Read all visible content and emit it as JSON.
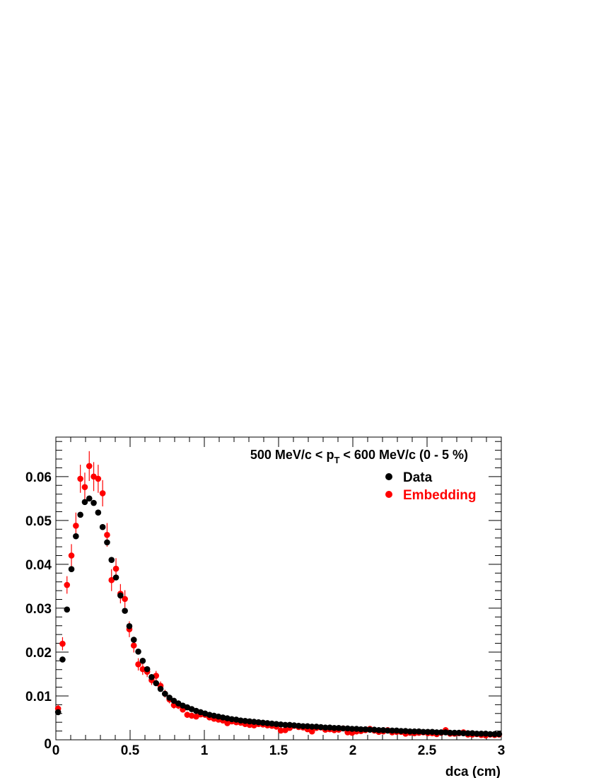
{
  "chart_data": {
    "type": "scatter",
    "title": "",
    "annotation": {
      "prefix": "500 MeV/c < p",
      "subscript": "T",
      "suffix": " < 600 MeV/c (0 - 5 %)"
    },
    "xlabel": "dca (cm)",
    "ylabel": "",
    "xlim": [
      0,
      3
    ],
    "ylim": [
      0,
      0.069
    ],
    "x_ticks": [
      "0",
      "0.5",
      "1",
      "1.5",
      "2",
      "2.5",
      "3"
    ],
    "y_ticks": [
      "0",
      "0.01",
      "0.02",
      "0.03",
      "0.04",
      "0.05",
      "0.06"
    ],
    "grid": false,
    "legend_position": "top-right",
    "series": [
      {
        "name": "Data",
        "color": "#000000",
        "x": [
          0.015,
          0.045,
          0.075,
          0.105,
          0.135,
          0.165,
          0.195,
          0.225,
          0.255,
          0.285,
          0.315,
          0.345,
          0.375,
          0.405,
          0.435,
          0.465,
          0.495,
          0.525,
          0.555,
          0.585,
          0.615,
          0.645,
          0.675,
          0.705,
          0.735,
          0.765,
          0.795,
          0.825,
          0.855,
          0.885,
          0.915,
          0.945,
          0.975,
          1.005,
          1.035,
          1.065,
          1.095,
          1.125,
          1.155,
          1.185,
          1.215,
          1.245,
          1.275,
          1.305,
          1.335,
          1.365,
          1.395,
          1.425,
          1.455,
          1.485,
          1.515,
          1.545,
          1.575,
          1.605,
          1.635,
          1.665,
          1.695,
          1.725,
          1.755,
          1.785,
          1.815,
          1.845,
          1.875,
          1.905,
          1.935,
          1.965,
          1.995,
          2.025,
          2.055,
          2.085,
          2.115,
          2.145,
          2.175,
          2.205,
          2.235,
          2.265,
          2.295,
          2.325,
          2.355,
          2.385,
          2.415,
          2.445,
          2.475,
          2.505,
          2.535,
          2.565,
          2.595,
          2.625,
          2.655,
          2.685,
          2.715,
          2.745,
          2.775,
          2.805,
          2.835,
          2.865,
          2.895,
          2.925,
          2.955,
          2.985
        ],
        "y": [
          0.0063,
          0.0183,
          0.0297,
          0.0389,
          0.0464,
          0.0513,
          0.0542,
          0.055,
          0.054,
          0.0518,
          0.0485,
          0.045,
          0.041,
          0.037,
          0.0329,
          0.0294,
          0.0259,
          0.0228,
          0.0201,
          0.018,
          0.0161,
          0.0143,
          0.0129,
          0.0116,
          0.0105,
          0.0096,
          0.0089,
          0.0083,
          0.0078,
          0.0074,
          0.007,
          0.0066,
          0.0063,
          0.006,
          0.0057,
          0.0055,
          0.0053,
          0.0051,
          0.0049,
          0.0047,
          0.0046,
          0.0044,
          0.0043,
          0.0042,
          0.0041,
          0.004,
          0.0039,
          0.0038,
          0.0037,
          0.0036,
          0.0035,
          0.0034,
          0.0034,
          0.0033,
          0.0032,
          0.0031,
          0.0031,
          0.003,
          0.003,
          0.0029,
          0.0028,
          0.0028,
          0.0027,
          0.0027,
          0.0026,
          0.0026,
          0.0025,
          0.0025,
          0.0024,
          0.0024,
          0.0023,
          0.0023,
          0.0022,
          0.0022,
          0.0021,
          0.0021,
          0.0021,
          0.002,
          0.002,
          0.0019,
          0.0019,
          0.0019,
          0.0018,
          0.0018,
          0.0018,
          0.0017,
          0.0017,
          0.0017,
          0.0016,
          0.0016,
          0.0016,
          0.0015,
          0.0015,
          0.0015,
          0.0014,
          0.0014,
          0.0014,
          0.0013,
          0.0013,
          0.0013
        ]
      },
      {
        "name": "Embedding",
        "color": "#ff0000",
        "x": [
          0.015,
          0.045,
          0.075,
          0.105,
          0.135,
          0.165,
          0.195,
          0.225,
          0.255,
          0.285,
          0.315,
          0.345,
          0.375,
          0.405,
          0.435,
          0.465,
          0.495,
          0.525,
          0.555,
          0.585,
          0.615,
          0.645,
          0.675,
          0.705,
          0.735,
          0.765,
          0.795,
          0.825,
          0.855,
          0.885,
          0.915,
          0.945,
          0.975,
          1.005,
          1.035,
          1.065,
          1.095,
          1.125,
          1.155,
          1.185,
          1.215,
          1.245,
          1.275,
          1.305,
          1.335,
          1.365,
          1.395,
          1.425,
          1.455,
          1.485,
          1.515,
          1.545,
          1.575,
          1.605,
          1.635,
          1.665,
          1.695,
          1.725,
          1.755,
          1.785,
          1.815,
          1.845,
          1.875,
          1.905,
          1.935,
          1.965,
          1.995,
          2.025,
          2.055,
          2.085,
          2.115,
          2.145,
          2.175,
          2.205,
          2.235,
          2.265,
          2.295,
          2.325,
          2.355,
          2.385,
          2.415,
          2.445,
          2.475,
          2.505,
          2.535,
          2.565,
          2.595,
          2.625,
          2.655,
          2.685,
          2.715,
          2.745,
          2.775,
          2.805,
          2.835,
          2.865,
          2.895,
          2.925,
          2.955,
          2.985
        ],
        "y": [
          0.0071,
          0.0219,
          0.0353,
          0.042,
          0.0488,
          0.0595,
          0.0576,
          0.0624,
          0.06,
          0.0595,
          0.0562,
          0.0467,
          0.0364,
          0.039,
          0.0333,
          0.0321,
          0.0252,
          0.0215,
          0.0172,
          0.0161,
          0.0155,
          0.0136,
          0.0146,
          0.0123,
          0.0105,
          0.0092,
          0.0079,
          0.0078,
          0.0069,
          0.0057,
          0.0055,
          0.0053,
          0.0058,
          0.0057,
          0.0051,
          0.0048,
          0.0046,
          0.0044,
          0.0038,
          0.0042,
          0.004,
          0.0039,
          0.0036,
          0.0034,
          0.0033,
          0.0036,
          0.0035,
          0.0033,
          0.0032,
          0.003,
          0.0021,
          0.0022,
          0.0027,
          0.0032,
          0.0029,
          0.0028,
          0.0024,
          0.0019,
          0.0027,
          0.0028,
          0.0023,
          0.0024,
          0.0022,
          0.0023,
          0.0026,
          0.0017,
          0.0016,
          0.0019,
          0.002,
          0.0022,
          0.0025,
          0.0021,
          0.0018,
          0.0019,
          0.0022,
          0.0017,
          0.0018,
          0.0018,
          0.0014,
          0.0016,
          0.0015,
          0.0016,
          0.0017,
          0.0015,
          0.0015,
          0.0013,
          0.0016,
          0.0022,
          0.0014,
          0.0014,
          0.0015,
          0.0017,
          0.0012,
          0.0012,
          0.0013,
          0.0011,
          0.001,
          0.0012,
          0.0011,
          0.0012
        ],
        "error": [
          0.0009,
          0.0015,
          0.002,
          0.0026,
          0.003,
          0.0032,
          0.0033,
          0.0034,
          0.0033,
          0.0032,
          0.003,
          0.0027,
          0.0025,
          0.0024,
          0.0022,
          0.002,
          0.0018,
          0.0016,
          0.0014,
          0.0013,
          0.0012,
          0.0011,
          0.0011,
          0.001,
          0.0009,
          0.0009,
          0.0008,
          0.0008,
          0.0007,
          0.0007,
          0.0007,
          0.0006,
          0.0006,
          0.0006,
          0.0006,
          0.0006,
          0.0005,
          0.0005,
          0.0005,
          0.0005,
          0.0005,
          0.0005,
          0.0005,
          0.0004,
          0.0004,
          0.0004,
          0.0004,
          0.0004,
          0.0004,
          0.0004,
          0.0004,
          0.0004,
          0.0004,
          0.0004,
          0.0004,
          0.0004,
          0.0004,
          0.0003,
          0.0004,
          0.0004,
          0.0003,
          0.0003,
          0.0003,
          0.0003,
          0.0004,
          0.0003,
          0.0003,
          0.0003,
          0.0003,
          0.0003,
          0.0003,
          0.0003,
          0.0003,
          0.0003,
          0.0003,
          0.0003,
          0.0003,
          0.0003,
          0.0003,
          0.0003,
          0.0003,
          0.0003,
          0.0003,
          0.0003,
          0.0003,
          0.0003,
          0.0003,
          0.0003,
          0.0003,
          0.0003,
          0.0003,
          0.0003,
          0.0003,
          0.0003,
          0.0003,
          0.0003,
          0.0003,
          0.0003,
          0.0003,
          0.0003
        ]
      }
    ]
  }
}
